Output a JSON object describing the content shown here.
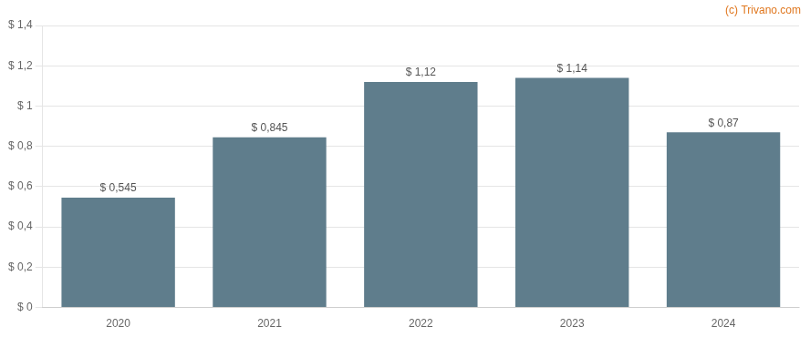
{
  "chart_data": {
    "type": "bar",
    "categories": [
      "2020",
      "2021",
      "2022",
      "2023",
      "2024"
    ],
    "values": [
      0.545,
      0.845,
      1.12,
      1.14,
      0.87
    ],
    "value_labels": [
      "$ 0,545",
      "$ 0,845",
      "$ 1,12",
      "$ 1,14",
      "$ 0,87"
    ],
    "data_labels": true,
    "color": "#5f7d8c",
    "ylim": [
      0,
      1.4
    ],
    "yticks": [
      {
        "value": 0,
        "label": "$ 0"
      },
      {
        "value": 0.2,
        "label": "$ 0,2"
      },
      {
        "value": 0.4,
        "label": "$ 0,4"
      },
      {
        "value": 0.6,
        "label": "$ 0,6"
      },
      {
        "value": 0.8,
        "label": "$ 0,8"
      },
      {
        "value": 1.0,
        "label": "$ 1"
      },
      {
        "value": 1.2,
        "label": "$ 1,2"
      },
      {
        "value": 1.4,
        "label": "$ 1,4"
      }
    ],
    "grid": true,
    "annotations": [
      {
        "text": "(c) Trivano.com",
        "color": "#e07820"
      }
    ]
  }
}
